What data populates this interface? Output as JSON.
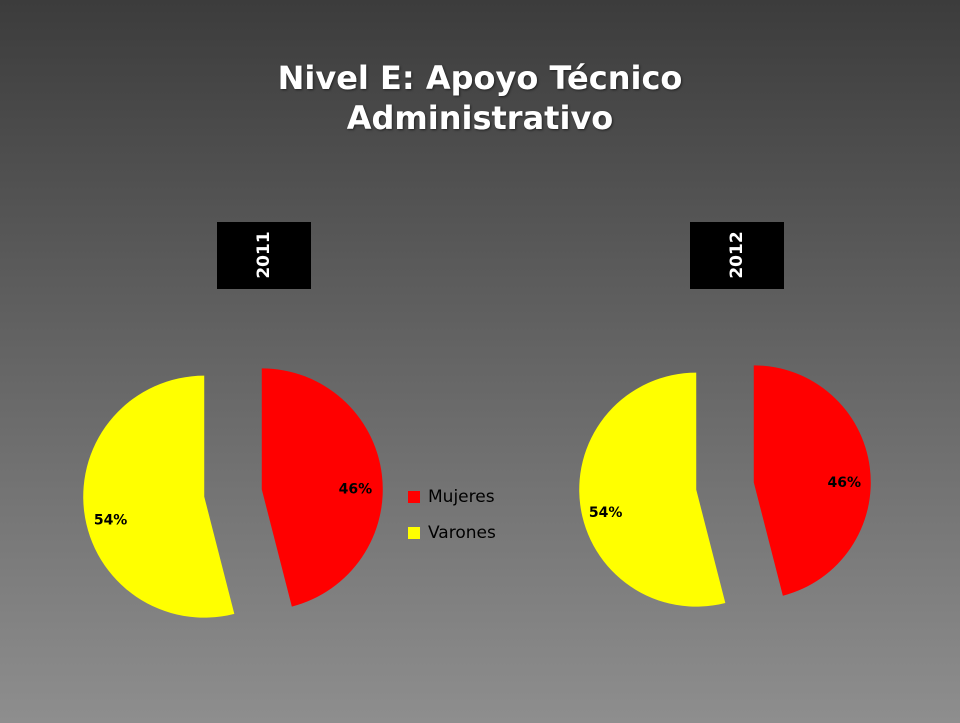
{
  "title": "Nivel E: Apoyo Técnico Administrativo",
  "chart_data": [
    {
      "type": "pie",
      "title": "2011",
      "categories": [
        "Mujeres",
        "Varones"
      ],
      "values": [
        46,
        54
      ],
      "value_labels": [
        "46%",
        "54%"
      ],
      "colors": [
        "#ff0000",
        "#ffff00"
      ],
      "legend": "right"
    },
    {
      "type": "pie",
      "title": "2012",
      "categories": [
        "Mujeres",
        "Varones"
      ],
      "values": [
        46,
        54
      ],
      "value_labels": [
        "46%",
        "54%"
      ],
      "colors": [
        "#ff0000",
        "#ffff00"
      ]
    }
  ]
}
